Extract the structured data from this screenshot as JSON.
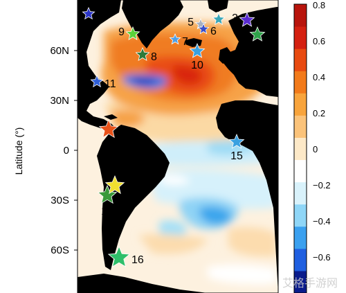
{
  "y_axis": {
    "title": "Latitude (°)",
    "ticks": [
      "60N",
      "30N",
      "0",
      "30S",
      "60S"
    ]
  },
  "colorbar": {
    "ticks": [
      "0.8",
      "0.6",
      "0.4",
      "0.2",
      "0",
      "−0.2",
      "−0.4",
      "−0.6"
    ],
    "colors": [
      "#0a1c8c",
      "#1f5fe0",
      "#3aa0ef",
      "#8fd6f7",
      "#d9f2fb",
      "#ffffff",
      "#fde9c8",
      "#fbc37a",
      "#f8a43c",
      "#f27a1a",
      "#e84a10",
      "#d42010",
      "#b8140c"
    ]
  },
  "markers": [
    {
      "id": "1",
      "color": "#2b35c8",
      "label_dir": "none"
    },
    {
      "id": "2",
      "color": "#2fa34a",
      "label_dir": "left"
    },
    {
      "id": "3",
      "color": "#5a2bd1",
      "label_dir": "left"
    },
    {
      "id": "4",
      "color": "#3aa7b8",
      "label_dir": "up"
    },
    {
      "id": "5",
      "color": "#a8b0c0",
      "label_dir": "left"
    },
    {
      "id": "6",
      "color": "#3a4fc9",
      "label_dir": "right"
    },
    {
      "id": "7",
      "color": "#4fa0e8",
      "label_dir": "right"
    },
    {
      "id": "8",
      "color": "#2f7a3a",
      "label_dir": "right"
    },
    {
      "id": "9",
      "color": "#5bd13a",
      "label_dir": "left"
    },
    {
      "id": "10",
      "color": "#3aa0e0",
      "label_dir": "down"
    },
    {
      "id": "11",
      "color": "#2f5fd8",
      "label_dir": "right"
    },
    {
      "id": "12",
      "color": "#e8521a",
      "label_dir": "down"
    },
    {
      "id": "13",
      "color": "#3a9a3a",
      "label_dir": "down"
    },
    {
      "id": "14",
      "color": "#f0e030",
      "label_dir": "right"
    },
    {
      "id": "15",
      "color": "#3aa0e0",
      "label_dir": "down"
    },
    {
      "id": "16",
      "color": "#2fbf6a",
      "label_dir": "right"
    }
  ],
  "watermark": "艾格手游网"
}
